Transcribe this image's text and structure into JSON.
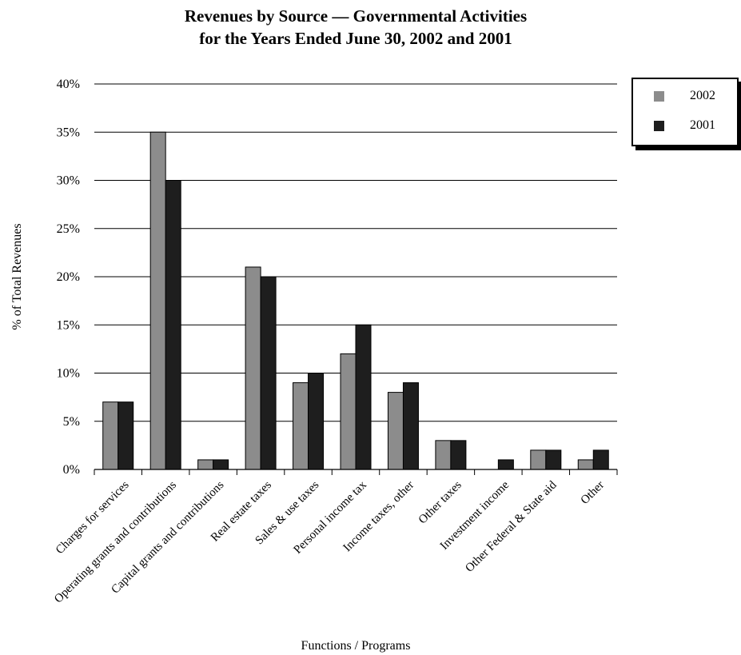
{
  "chart_data": {
    "type": "bar",
    "title": "Revenues by Source — Governmental Activities",
    "subtitle": "for the Years Ended June 30, 2002 and 2001",
    "xlabel": "Functions / Programs",
    "ylabel": "% of Total Revenues",
    "categories": [
      "Charges for services",
      "Operating grants and contributions",
      "Capital grants and contributions",
      "Real estate taxes",
      "Sales & use taxes",
      "Personal income tax",
      "Income taxes, other",
      "Other taxes",
      "Investment income",
      "Other Federal & State aid",
      "Other"
    ],
    "series": [
      {
        "name": "2002",
        "color": "#8c8c8c",
        "values": [
          7,
          35,
          1,
          21,
          9,
          12,
          8,
          3,
          0,
          2,
          1
        ]
      },
      {
        "name": "2001",
        "color": "#1e1e1e",
        "values": [
          7,
          30,
          1,
          20,
          10,
          15,
          9,
          3,
          1,
          2,
          2
        ]
      }
    ],
    "ylim": [
      0,
      40
    ],
    "yticks": [
      "0%",
      "5%",
      "10%",
      "15%",
      "20%",
      "25%",
      "30%",
      "35%",
      "40%"
    ],
    "grid": true,
    "legend_position": "top-right"
  }
}
